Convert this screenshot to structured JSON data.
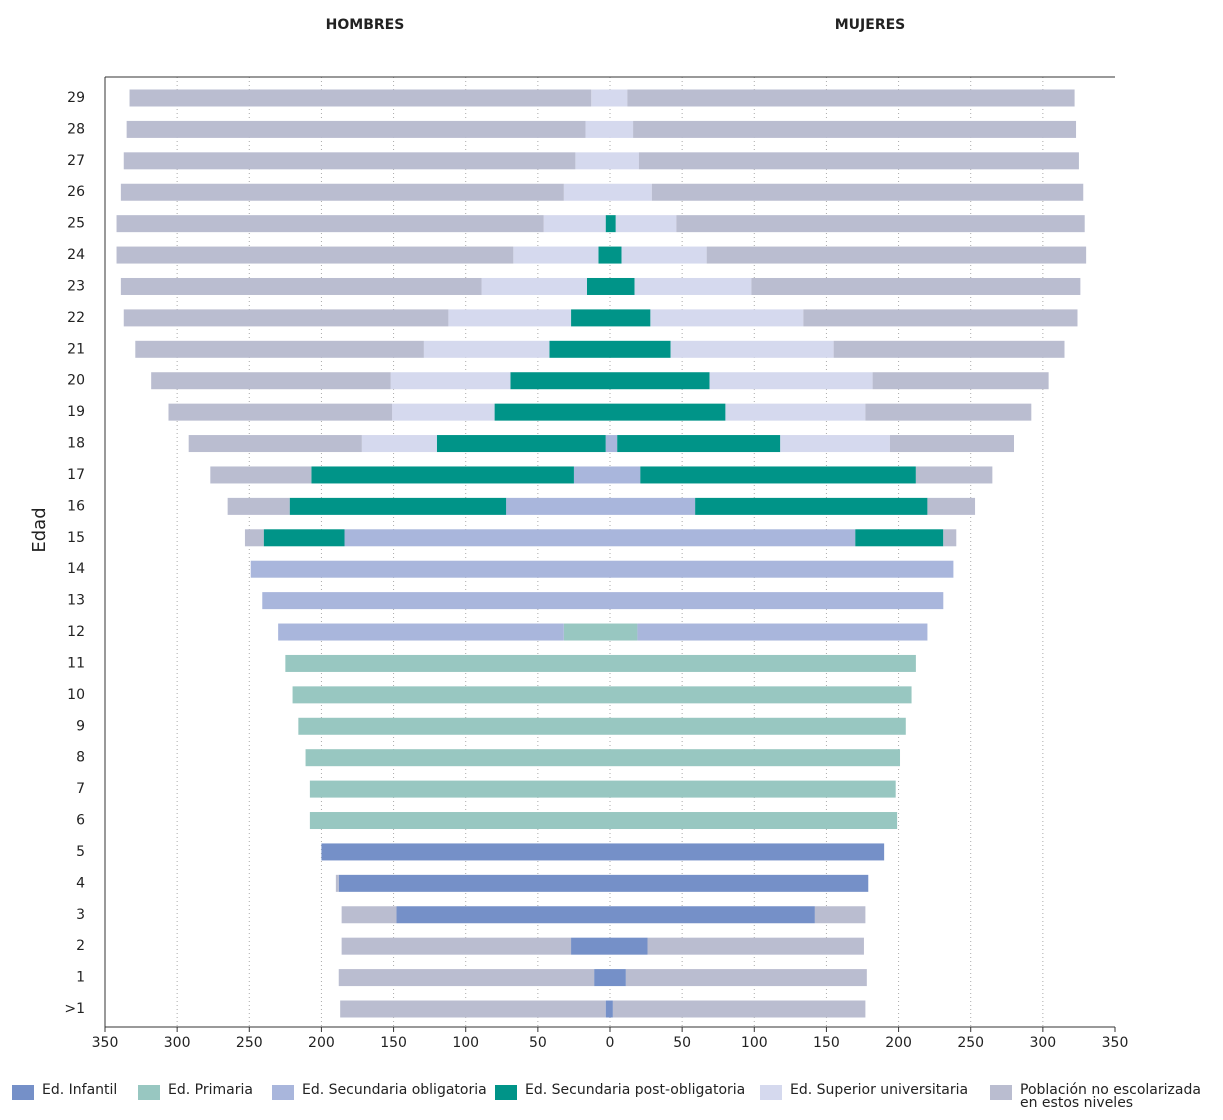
{
  "chart_data": {
    "type": "pyramid",
    "left_title": "HOMBRES",
    "right_title": "MUJERES",
    "ylabel": "Edad",
    "categories": [
      ">1",
      "1",
      "2",
      "3",
      "4",
      "5",
      "6",
      "7",
      "8",
      "9",
      "10",
      "11",
      "12",
      "13",
      "14",
      "15",
      "16",
      "17",
      "18",
      "19",
      "20",
      "21",
      "22",
      "23",
      "24",
      "25",
      "26",
      "27",
      "28",
      "29"
    ],
    "xlim": [
      -350,
      350
    ],
    "xticks": [
      {
        "value": -350,
        "label": "350"
      },
      {
        "value": -300,
        "label": "300"
      },
      {
        "value": -250,
        "label": "250"
      },
      {
        "value": -200,
        "label": "200"
      },
      {
        "value": -150,
        "label": "150"
      },
      {
        "value": -100,
        "label": "100"
      },
      {
        "value": -50,
        "label": "50"
      },
      0,
      50,
      100,
      150,
      200,
      250,
      300,
      350
    ],
    "grid": true,
    "series": [
      {
        "name": "Ed. Infantil",
        "color": "#7590c8",
        "left": [
          3,
          11,
          27,
          148,
          188,
          200,
          0,
          0,
          0,
          0,
          0,
          0,
          0,
          0,
          0,
          0,
          0,
          0,
          0,
          0,
          0,
          0,
          0,
          0,
          0,
          0,
          0,
          0,
          0,
          0
        ],
        "right": [
          2,
          11,
          26,
          142,
          179,
          190,
          0,
          0,
          0,
          0,
          0,
          0,
          0,
          0,
          0,
          0,
          0,
          0,
          0,
          0,
          0,
          0,
          0,
          0,
          0,
          0,
          0,
          0,
          0,
          0
        ]
      },
      {
        "name": "Ed. Primaria",
        "color": "#98c7c1",
        "left": [
          0,
          0,
          0,
          0,
          0,
          0,
          208,
          208,
          211,
          216,
          220,
          225,
          32,
          0,
          0,
          0,
          0,
          0,
          0,
          0,
          0,
          0,
          0,
          0,
          0,
          0,
          0,
          0,
          0,
          0
        ],
        "right": [
          0,
          0,
          0,
          0,
          0,
          0,
          199,
          198,
          201,
          205,
          209,
          212,
          19,
          0,
          0,
          0,
          0,
          0,
          0,
          0,
          0,
          0,
          0,
          0,
          0,
          0,
          0,
          0,
          0,
          0
        ]
      },
      {
        "name": "Ed. Secundaria obligatoria",
        "color": "#a9b6dc",
        "left": [
          0,
          0,
          0,
          0,
          0,
          0,
          0,
          0,
          0,
          0,
          0,
          0,
          198,
          241,
          249,
          184,
          72,
          25,
          3,
          0,
          0,
          0,
          0,
          0,
          0,
          0,
          0,
          0,
          0,
          0
        ],
        "right": [
          0,
          0,
          0,
          0,
          0,
          0,
          0,
          0,
          0,
          0,
          0,
          0,
          201,
          231,
          238,
          170,
          59,
          21,
          5,
          0,
          0,
          0,
          0,
          0,
          0,
          0,
          0,
          0,
          0,
          0
        ]
      },
      {
        "name": "Ed. Secundaria post-obligatoria",
        "color": "#009488",
        "left": [
          0,
          0,
          0,
          0,
          0,
          0,
          0,
          0,
          0,
          0,
          0,
          0,
          0,
          0,
          0,
          56,
          150,
          182,
          117,
          80,
          69,
          42,
          27,
          16,
          8,
          3,
          0,
          0,
          0,
          0
        ],
        "right": [
          0,
          0,
          0,
          0,
          0,
          0,
          0,
          0,
          0,
          0,
          0,
          0,
          0,
          0,
          0,
          61,
          161,
          191,
          113,
          80,
          69,
          42,
          28,
          17,
          8,
          4,
          0,
          0,
          0,
          0
        ]
      },
      {
        "name": "Ed. Superior universitaria",
        "color": "#d5d9ee",
        "left": [
          0,
          0,
          0,
          0,
          0,
          0,
          0,
          0,
          0,
          0,
          0,
          0,
          0,
          0,
          0,
          0,
          0,
          0,
          52,
          71,
          83,
          87,
          85,
          73,
          59,
          43,
          32,
          24,
          17,
          13
        ],
        "right": [
          0,
          0,
          0,
          0,
          0,
          0,
          0,
          0,
          0,
          0,
          0,
          0,
          0,
          0,
          0,
          0,
          0,
          0,
          76,
          97,
          113,
          113,
          106,
          81,
          59,
          42,
          29,
          20,
          16,
          12
        ]
      },
      {
        "name": "Población no escolarizada\nen estos niveles",
        "color": "#babdd0",
        "left": [
          184,
          177,
          159,
          38,
          2,
          0,
          0,
          0,
          0,
          0,
          0,
          0,
          0,
          0,
          0,
          13,
          43,
          70,
          120,
          155,
          166,
          200,
          225,
          250,
          275,
          296,
          307,
          313,
          318,
          320
        ],
        "right": [
          175,
          167,
          150,
          35,
          0,
          0,
          0,
          0,
          0,
          0,
          0,
          0,
          0,
          0,
          0,
          9,
          33,
          53,
          86,
          115,
          122,
          160,
          190,
          228,
          263,
          283,
          299,
          305,
          307,
          310
        ]
      }
    ]
  }
}
